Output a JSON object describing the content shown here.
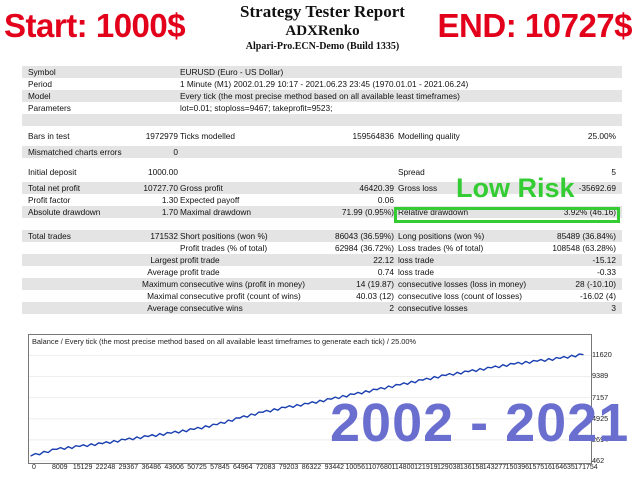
{
  "banner": {
    "start": "Start: 1000$",
    "end": "END: 10727$"
  },
  "header": {
    "title": "Strategy Tester Report",
    "expert": "ADXRenko",
    "server": "Alpari-Pro.ECN-Demo (Build 1335)"
  },
  "info": {
    "symbol": {
      "label": "Symbol",
      "value": "EURUSD (Euro - US Dollar)"
    },
    "period": {
      "label": "Period",
      "value": "1 Minute (M1) 2002.01.29 10:17 - 2021.06.23 23:45 (1970.01.01 - 2021.06.24)"
    },
    "model": {
      "label": "Model",
      "value": "Every tick (the most precise method based on all available least timeframes)"
    },
    "parameters": {
      "label": "Parameters",
      "value": "lot=0.01; stoploss=9467; takeprofit=9523;"
    }
  },
  "stats": {
    "bars_label": "Bars in test",
    "bars": "1972979",
    "ticks_label": "Ticks modelled",
    "ticks": "159564836",
    "quality_label": "Modelling quality",
    "quality": "25.00%",
    "mismatch_label": "Mismatched charts errors",
    "mismatch": "0",
    "deposit_label": "Initial deposit",
    "deposit": "1000.00",
    "spread_label": "Spread",
    "spread": "5",
    "netprofit_label": "Total net profit",
    "netprofit": "10727.70",
    "grossprofit_label": "Gross profit",
    "grossprofit": "46420.39",
    "grossloss_label": "Gross loss",
    "grossloss": "-35692.69",
    "pf_label": "Profit factor",
    "pf": "1.30",
    "payoff_label": "Expected payoff",
    "payoff": "0.06",
    "absdd_label": "Absolute drawdown",
    "absdd": "1.70",
    "maxdd_label": "Maximal drawdown",
    "maxdd": "71.99 (0.95%)",
    "reldd_label": "Relative drawdown",
    "reldd": "3.92% (46.16)",
    "trades_label": "Total trades",
    "trades": "171532",
    "short_label": "Short positions (won %)",
    "short": "86043 (36.59%)",
    "long_label": "Long positions (won %)",
    "long": "85489 (36.84%)",
    "profit_trades_label": "Profit trades (% of total)",
    "profit_trades": "62984 (36.72%)",
    "loss_trades_label": "Loss trades (% of total)",
    "loss_trades": "108548 (63.28%)",
    "largest_label": "Largest",
    "largest_profit_label": "profit trade",
    "largest_profit": "22.12",
    "largest_loss_label": "loss trade",
    "largest_loss": "-15.12",
    "average_label": "Average",
    "average_profit_label": "profit trade",
    "average_profit": "0.74",
    "average_loss_label": "loss trade",
    "average_loss": "-0.33",
    "maximum_label": "Maximum",
    "max_wins_label": "consecutive wins (profit in money)",
    "max_wins": "14 (19.87)",
    "max_losses_label": "consecutive losses (loss in money)",
    "max_losses": "28 (-10.10)",
    "maximal_label": "Maximal",
    "maximal_profit_label": "consecutive profit (count of wins)",
    "maximal_profit": "40.03 (12)",
    "maximal_loss_label": "consecutive loss (count of losses)",
    "maximal_loss": "-16.02 (4)",
    "avg_cons_label": "Average",
    "avg_wins_label": "consecutive wins",
    "avg_wins": "2",
    "avg_losses_label": "consecutive losses",
    "avg_losses": "3"
  },
  "annotations": {
    "low_risk": "Low Risk",
    "years": "2002 - 2021",
    "highlight_color": "#33cc33"
  },
  "chart_data": {
    "type": "line",
    "title": "Balance / Every tick (the most precise method based on all available least timeframes to generate each tick) / 25.00%",
    "y_ticks": [
      "11620",
      "9389",
      "7157",
      "4925",
      "2694",
      "462"
    ],
    "x_ticks": [
      "0",
      "8009",
      "15129",
      "22248",
      "29367",
      "36486",
      "43606",
      "50725",
      "57845",
      "64964",
      "72083",
      "79203",
      "86322",
      "93442",
      "100561",
      "107680",
      "114800",
      "121919",
      "129038",
      "136158",
      "143277",
      "150396",
      "157516",
      "164635",
      "171754"
    ],
    "ylim": [
      462,
      12500
    ],
    "xlim": [
      0,
      173000
    ],
    "series": [
      {
        "color": "#1a3fb0",
        "x": [
          0,
          8009,
          15129,
          22248,
          29367,
          36486,
          43606,
          50725,
          57845,
          64964,
          72083,
          79203,
          86322,
          93442,
          100561,
          107680,
          114800,
          121919,
          129038,
          136158,
          143277,
          150396,
          157516,
          164635,
          171754
        ],
        "y": [
          1000,
          1700,
          2000,
          2300,
          2700,
          3050,
          3400,
          3800,
          4300,
          5000,
          5600,
          6100,
          6500,
          7000,
          7500,
          8000,
          8500,
          9000,
          9500,
          9900,
          10300,
          10700,
          11000,
          11300,
          11700
        ]
      }
    ]
  }
}
